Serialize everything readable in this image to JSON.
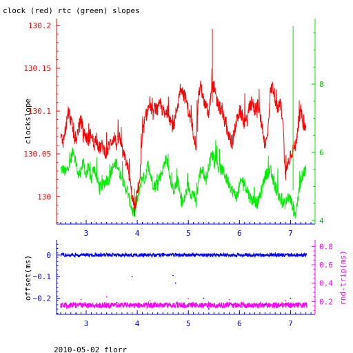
{
  "title": "clock (red) rtc (green) slopes",
  "footer": "2010-05-02 florr",
  "chart_data": [
    {
      "type": "line",
      "title": "clock (red) rtc (green) slopes",
      "xlabel": "",
      "ylabel": "clockslope",
      "xlim": [
        2.42,
        7.48
      ],
      "ylim": [
        129.968,
        130.208
      ],
      "y2lim": [
        3.9,
        9.92
      ],
      "x_ticks": [
        "3",
        "4",
        "5",
        "6",
        "7"
      ],
      "x_tick_values": [
        3,
        4,
        5,
        6,
        7
      ],
      "y_ticks": [
        "130",
        "130.05",
        "130.1",
        "130.15",
        "130.2"
      ],
      "y_tick_values": [
        130,
        130.05,
        130.1,
        130.15,
        130.2
      ],
      "y2_ticks": [
        "4",
        "6",
        "8"
      ],
      "y2_tick_values": [
        4,
        6,
        8
      ],
      "grid": false,
      "colors": {
        "clock": "#ff0000",
        "rtc": "#00ee00",
        "left_axis": "#ff0000",
        "right_axis": "#00ee00"
      },
      "series": [
        {
          "name": "clock",
          "axis": "left",
          "x": [
            2.5,
            2.55,
            2.6,
            2.65,
            2.7,
            2.75,
            2.8,
            2.85,
            2.9,
            2.95,
            3.0,
            3.05,
            3.1,
            3.15,
            3.2,
            3.25,
            3.3,
            3.35,
            3.4,
            3.45,
            3.5,
            3.55,
            3.6,
            3.65,
            3.7,
            3.75,
            3.8,
            3.85,
            3.9,
            3.95,
            4.0,
            4.05,
            4.1,
            4.15,
            4.2,
            4.25,
            4.3,
            4.35,
            4.4,
            4.45,
            4.5,
            4.55,
            4.6,
            4.65,
            4.7,
            4.75,
            4.8,
            4.85,
            4.9,
            4.95,
            5.0,
            5.05,
            5.1,
            5.15,
            5.2,
            5.25,
            5.3,
            5.35,
            5.4,
            5.45,
            5.5,
            5.55,
            5.6,
            5.65,
            5.7,
            5.75,
            5.8,
            5.85,
            5.9,
            5.95,
            6.0,
            6.05,
            6.1,
            6.15,
            6.2,
            6.25,
            6.3,
            6.35,
            6.4,
            6.45,
            6.5,
            6.55,
            6.6,
            6.65,
            6.7,
            6.75,
            6.8,
            6.85,
            6.9,
            6.95,
            7.0,
            7.05,
            7.1,
            7.15,
            7.2,
            7.25,
            7.3
          ],
          "y": [
            130.07,
            130.065,
            130.08,
            130.1,
            130.09,
            130.075,
            130.065,
            130.08,
            130.09,
            130.075,
            130.07,
            130.065,
            130.075,
            130.06,
            130.07,
            130.055,
            130.06,
            130.055,
            130.05,
            130.06,
            130.065,
            130.07,
            130.06,
            130.07,
            130.055,
            130.045,
            130.04,
            130.02,
            130.0,
            129.985,
            130.005,
            130.02,
            130.07,
            130.09,
            130.1,
            130.11,
            130.095,
            130.105,
            130.1,
            130.11,
            130.1,
            130.095,
            130.1,
            130.09,
            130.08,
            130.095,
            130.11,
            130.13,
            130.12,
            130.115,
            130.1,
            130.09,
            130.075,
            130.06,
            130.12,
            130.13,
            130.11,
            130.105,
            130.095,
            130.125,
            130.13,
            130.11,
            130.105,
            130.1,
            130.09,
            130.08,
            130.07,
            130.06,
            130.075,
            130.09,
            130.1,
            130.095,
            130.085,
            130.09,
            130.105,
            130.11,
            130.1,
            130.11,
            130.095,
            130.08,
            130.06,
            130.07,
            130.12,
            130.13,
            130.115,
            130.1,
            130.11,
            130.09,
            130.02,
            130.04,
            130.05,
            130.055,
            130.06,
            130.085,
            130.1,
            130.085,
            130.08
          ]
        },
        {
          "name": "rtc",
          "axis": "right",
          "x": [
            2.5,
            2.55,
            2.6,
            2.65,
            2.7,
            2.75,
            2.8,
            2.85,
            2.9,
            2.95,
            3.0,
            3.05,
            3.1,
            3.15,
            3.2,
            3.25,
            3.3,
            3.35,
            3.4,
            3.45,
            3.5,
            3.55,
            3.6,
            3.65,
            3.7,
            3.75,
            3.8,
            3.85,
            3.9,
            3.95,
            4.0,
            4.05,
            4.1,
            4.15,
            4.2,
            4.25,
            4.3,
            4.35,
            4.4,
            4.45,
            4.5,
            4.55,
            4.6,
            4.65,
            4.7,
            4.75,
            4.8,
            4.85,
            4.9,
            4.95,
            5.0,
            5.05,
            5.1,
            5.15,
            5.2,
            5.25,
            5.3,
            5.35,
            5.4,
            5.45,
            5.5,
            5.55,
            5.6,
            5.65,
            5.7,
            5.75,
            5.8,
            5.85,
            5.9,
            5.95,
            6.0,
            6.05,
            6.1,
            6.15,
            6.2,
            6.25,
            6.3,
            6.35,
            6.4,
            6.45,
            6.5,
            6.55,
            6.6,
            6.65,
            6.7,
            6.75,
            6.8,
            6.85,
            6.9,
            6.95,
            7.0,
            7.05,
            7.1,
            7.15,
            7.2,
            7.25,
            7.3
          ],
          "y": [
            5.5,
            5.5,
            5.4,
            5.6,
            5.8,
            6.1,
            5.7,
            5.3,
            5.5,
            5.7,
            5.3,
            5.5,
            5.2,
            5.6,
            5.3,
            5.0,
            5.0,
            5.1,
            5.2,
            5.2,
            5.5,
            5.6,
            5.7,
            5.4,
            5.3,
            5.0,
            4.9,
            4.6,
            4.3,
            4.2,
            4.6,
            5.0,
            5.3,
            5.2,
            5.6,
            5.4,
            5.1,
            5.0,
            5.2,
            5.3,
            5.5,
            5.8,
            5.7,
            5.2,
            4.9,
            5.0,
            5.2,
            4.6,
            4.5,
            4.8,
            5.0,
            4.8,
            4.8,
            4.5,
            5.2,
            5.5,
            5.4,
            5.2,
            5.6,
            5.9,
            5.9,
            5.8,
            5.5,
            5.5,
            5.4,
            5.2,
            5.1,
            4.9,
            4.8,
            4.7,
            5.0,
            5.2,
            5.1,
            4.9,
            4.7,
            4.6,
            4.6,
            4.5,
            4.7,
            5.0,
            5.3,
            5.4,
            5.5,
            5.2,
            5.0,
            4.8,
            4.6,
            4.5,
            4.5,
            4.7,
            4.6,
            4.4,
            4.2,
            4.7,
            5.2,
            5.4,
            5.5
          ]
        }
      ],
      "spikes": [
        {
          "series": "clock",
          "x": 5.47,
          "y": 130.196
        },
        {
          "series": "rtc",
          "x": 7.05,
          "y": 9.7
        }
      ]
    },
    {
      "type": "scatter",
      "xlabel": "",
      "ylabel": "offset(ms)",
      "y2label": "rnd-trip(ms)",
      "xlim": [
        2.42,
        7.48
      ],
      "ylim": [
        -0.275,
        0.07
      ],
      "y2lim": [
        0.06,
        0.87
      ],
      "x_ticks": [
        "3",
        "4",
        "5",
        "6",
        "7"
      ],
      "x_tick_values": [
        3,
        4,
        5,
        6,
        7
      ],
      "y_ticks": [
        "0",
        "−0.1",
        "−0.2"
      ],
      "y_tick_values": [
        0,
        -0.1,
        -0.2
      ],
      "y2_ticks": [
        "0.2",
        "0.4",
        "0.6",
        "0.8"
      ],
      "y2_tick_values": [
        0.2,
        0.4,
        0.6,
        0.8
      ],
      "grid": false,
      "colors": {
        "offset": "#0000ff",
        "rnd_trip": "#ff00ff",
        "left_axis": "#0000ff",
        "right_axis": "#ff00ff"
      },
      "series": [
        {
          "name": "offset(ms)",
          "axis": "left",
          "x_range": [
            2.5,
            7.32
          ],
          "level": 0.0
        },
        {
          "name": "rnd-trip(ms)",
          "axis": "right",
          "x_range": [
            2.5,
            7.32
          ],
          "level": 0.16
        }
      ],
      "outliers_offset": [
        [
          2.8,
          -0.27
        ],
        [
          3.6,
          -0.22
        ],
        [
          3.9,
          -0.1
        ],
        [
          4.7,
          -0.095
        ],
        [
          4.75,
          -0.13
        ],
        [
          5.3,
          -0.2
        ],
        [
          5.4,
          -0.25
        ],
        [
          6.05,
          -0.24
        ],
        [
          6.5,
          -0.23
        ],
        [
          7.0,
          -0.2
        ]
      ],
      "outliers_rndtrip": [
        [
          2.9,
          0.22
        ],
        [
          3.4,
          0.25
        ],
        [
          4.25,
          0.21
        ],
        [
          5.0,
          0.23
        ],
        [
          5.8,
          0.22
        ],
        [
          6.9,
          0.21
        ]
      ]
    }
  ]
}
